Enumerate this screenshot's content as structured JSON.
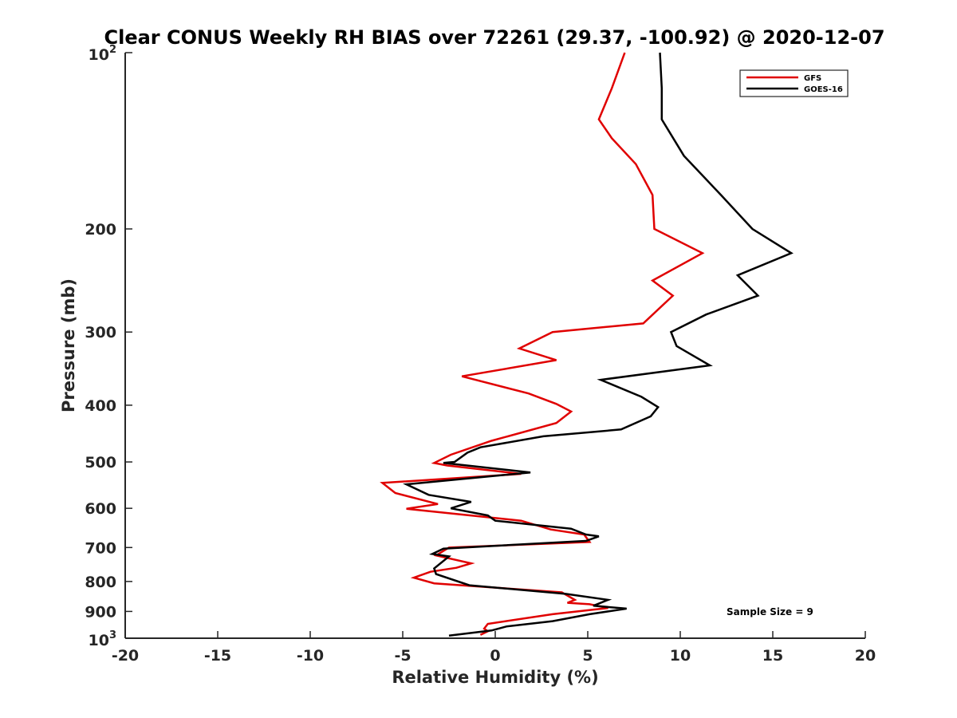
{
  "chart_data": {
    "type": "line",
    "title": "Clear CONUS Weekly RH BIAS over 72261 (29.37, -100.92) @ 2020-12-07",
    "xlabel": "Relative Humidity (%)",
    "ylabel": "Pressure (mb)",
    "xlim": [
      -20,
      20
    ],
    "ylim": [
      100,
      1000
    ],
    "y_scale": "log",
    "y_reversed": true,
    "x_ticks": [
      "-20",
      "-15",
      "-10",
      "-5",
      "0",
      "5",
      "10",
      "15",
      "20"
    ],
    "y_ticks": [
      {
        "value": 100,
        "base": "10",
        "sup": "2"
      },
      {
        "value": 200,
        "label": "200"
      },
      {
        "value": 300,
        "label": "300"
      },
      {
        "value": 400,
        "label": "400"
      },
      {
        "value": 500,
        "label": "500"
      },
      {
        "value": 600,
        "label": "600"
      },
      {
        "value": 700,
        "label": "700"
      },
      {
        "value": 800,
        "label": "800"
      },
      {
        "value": 900,
        "label": "900"
      },
      {
        "value": 1000,
        "base": "10",
        "sup": "3"
      }
    ],
    "grid": false,
    "legend_position": "top-right",
    "annotation": "Sample Size = 9",
    "series": [
      {
        "name": "GFS",
        "color": "#e00000",
        "points": [
          [
            7.0,
            100
          ],
          [
            6.3,
            115
          ],
          [
            5.6,
            130
          ],
          [
            6.3,
            140
          ],
          [
            7.6,
            155
          ],
          [
            8.5,
            175
          ],
          [
            8.6,
            200
          ],
          [
            11.2,
            220
          ],
          [
            8.5,
            245
          ],
          [
            9.6,
            260
          ],
          [
            8.0,
            290
          ],
          [
            3.1,
            300
          ],
          [
            1.3,
            320
          ],
          [
            3.3,
            335
          ],
          [
            -1.8,
            357
          ],
          [
            1.8,
            382
          ],
          [
            3.3,
            398
          ],
          [
            4.1,
            410
          ],
          [
            3.3,
            429
          ],
          [
            -0.2,
            460
          ],
          [
            -2.4,
            486
          ],
          [
            -3.3,
            502
          ],
          [
            -2.6,
            507
          ],
          [
            1.4,
            524
          ],
          [
            -6.1,
            543
          ],
          [
            -5.4,
            565
          ],
          [
            -3.1,
            590
          ],
          [
            -4.8,
            601
          ],
          [
            1.4,
            630
          ],
          [
            3.0,
            652
          ],
          [
            4.8,
            665
          ],
          [
            5.1,
            685
          ],
          [
            -2.5,
            700
          ],
          [
            -3.2,
            722
          ],
          [
            -1.3,
            745
          ],
          [
            -2.1,
            758
          ],
          [
            -3.5,
            770
          ],
          [
            -4.4,
            788
          ],
          [
            -3.3,
            806
          ],
          [
            3.6,
            835
          ],
          [
            4.3,
            860
          ],
          [
            3.9,
            870
          ],
          [
            5.1,
            875
          ],
          [
            6.1,
            888
          ],
          [
            3.1,
            910
          ],
          [
            -0.4,
            945
          ],
          [
            -0.6,
            963
          ],
          [
            -0.4,
            973
          ],
          [
            -0.8,
            987
          ]
        ]
      },
      {
        "name": "GOES-16",
        "color": "#000000",
        "points": [
          [
            8.9,
            100
          ],
          [
            9.0,
            115
          ],
          [
            9.0,
            130
          ],
          [
            10.2,
            150
          ],
          [
            12.2,
            175
          ],
          [
            13.9,
            200
          ],
          [
            16.0,
            220
          ],
          [
            13.1,
            240
          ],
          [
            14.2,
            260
          ],
          [
            11.4,
            280
          ],
          [
            9.5,
            300
          ],
          [
            9.8,
            317
          ],
          [
            11.6,
            342
          ],
          [
            5.7,
            362
          ],
          [
            7.9,
            387
          ],
          [
            8.8,
            403
          ],
          [
            8.4,
            418
          ],
          [
            6.8,
            440
          ],
          [
            2.6,
            452
          ],
          [
            -0.8,
            472
          ],
          [
            -1.5,
            482
          ],
          [
            -2.2,
            500
          ],
          [
            -2.8,
            502
          ],
          [
            1.9,
            521
          ],
          [
            -4.8,
            546
          ],
          [
            -3.6,
            569
          ],
          [
            -1.3,
            585
          ],
          [
            -2.4,
            600
          ],
          [
            -0.4,
            617
          ],
          [
            0.0,
            630
          ],
          [
            4.1,
            650
          ],
          [
            4.9,
            665
          ],
          [
            5.6,
            670
          ],
          [
            4.9,
            682
          ],
          [
            -2.8,
            703
          ],
          [
            -3.4,
            718
          ],
          [
            -2.5,
            725
          ],
          [
            -3.3,
            760
          ],
          [
            -3.2,
            777
          ],
          [
            -1.4,
            812
          ],
          [
            3.8,
            840
          ],
          [
            6.1,
            860
          ],
          [
            5.3,
            880
          ],
          [
            7.1,
            890
          ],
          [
            5.1,
            910
          ],
          [
            3.1,
            935
          ],
          [
            0.6,
            955
          ],
          [
            -0.2,
            970
          ],
          [
            -2.5,
            990
          ]
        ]
      }
    ]
  }
}
